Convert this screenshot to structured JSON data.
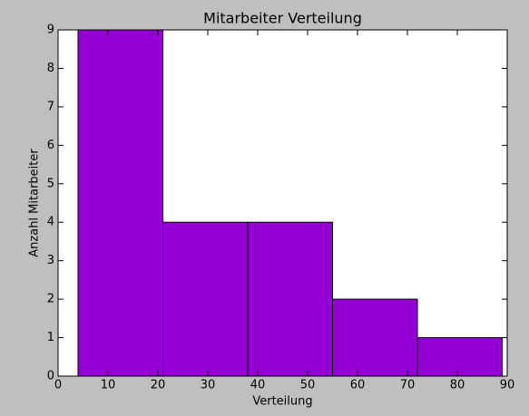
{
  "chart_data": {
    "type": "histogram",
    "title": "Mitarbeiter Verteilung",
    "x_label": "Verteilung",
    "y_label": "Anzahl Mitarbeiter",
    "bins": [
      4,
      21,
      38,
      55,
      72,
      89
    ],
    "values": [
      9,
      4,
      4,
      2,
      1
    ],
    "color": "#9400d3",
    "xlim": [
      0,
      90
    ],
    "xticks": [
      0,
      10,
      20,
      30,
      40,
      50,
      60,
      70,
      80,
      90
    ],
    "ylim": [
      0,
      9
    ],
    "yticks": [
      0,
      1,
      2,
      3,
      4,
      5,
      6,
      7,
      8,
      9
    ]
  }
}
